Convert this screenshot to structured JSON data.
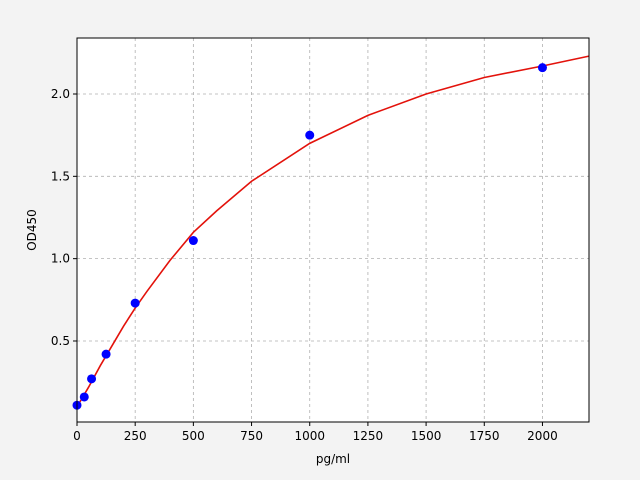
{
  "chart_data": {
    "type": "scatter",
    "xlabel": "pg/ml",
    "ylabel": "OD450",
    "xlim": [
      0,
      2200
    ],
    "ylim": [
      0.008,
      2.34
    ],
    "xticks": [
      0,
      250,
      500,
      750,
      1000,
      1250,
      1500,
      1750,
      2000
    ],
    "yticks": [
      0.5,
      {
        "value": 1.0,
        "label": "1.0"
      },
      1.5,
      {
        "value": 2.0,
        "label": "2.0"
      }
    ],
    "grid": true,
    "series": [
      {
        "type": "line",
        "color": "#e3120b",
        "x": [
          0,
          50,
          100,
          150,
          200,
          250,
          300,
          400,
          500,
          600,
          750,
          1000,
          1250,
          1500,
          1750,
          2000,
          2200
        ],
        "values": [
          0.1,
          0.22,
          0.35,
          0.47,
          0.59,
          0.7,
          0.8,
          0.99,
          1.16,
          1.29,
          1.47,
          1.7,
          1.87,
          2.0,
          2.1,
          2.17,
          2.23
        ]
      },
      {
        "type": "scatter",
        "color": "#0000ff",
        "x": [
          0,
          31.25,
          62.5,
          125,
          250,
          500,
          1000,
          2000
        ],
        "values": [
          0.11,
          0.16,
          0.27,
          0.42,
          0.73,
          1.11,
          1.75,
          2.16
        ]
      }
    ]
  }
}
